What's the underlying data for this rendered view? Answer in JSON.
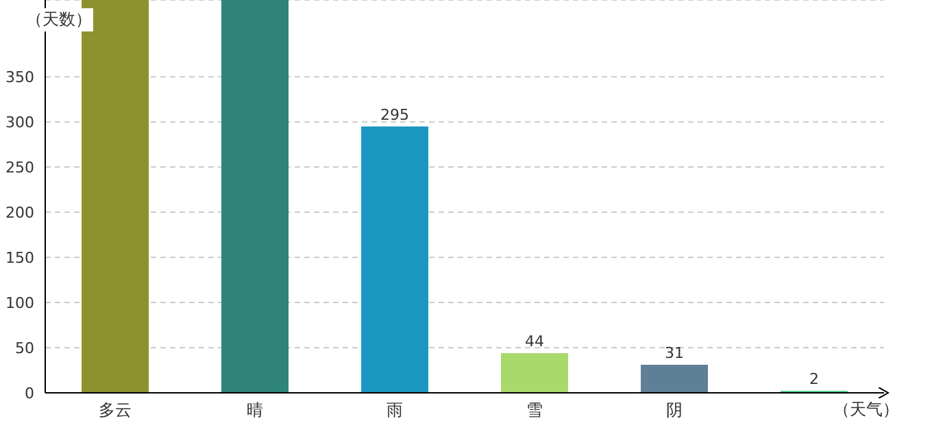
{
  "chart_data": {
    "type": "bar",
    "ylabel": "（天数）",
    "xlabel": "（天气）",
    "categories": [
      "多云",
      "晴",
      "雨",
      "雪",
      "阴",
      null
    ],
    "values": [
      435,
      435,
      295,
      44,
      31,
      2
    ],
    "colors": [
      "#8d922e",
      "#2e847a",
      "#1c97c2",
      "#a9d86b",
      "#5f7f97",
      "#3dc47c"
    ],
    "value_labels": [
      null,
      null,
      "295",
      "44",
      "31",
      "2"
    ],
    "ylim": [
      0,
      435
    ],
    "yticks": [
      0,
      50,
      100,
      150,
      200,
      250,
      300,
      350
    ],
    "grid": "y"
  }
}
